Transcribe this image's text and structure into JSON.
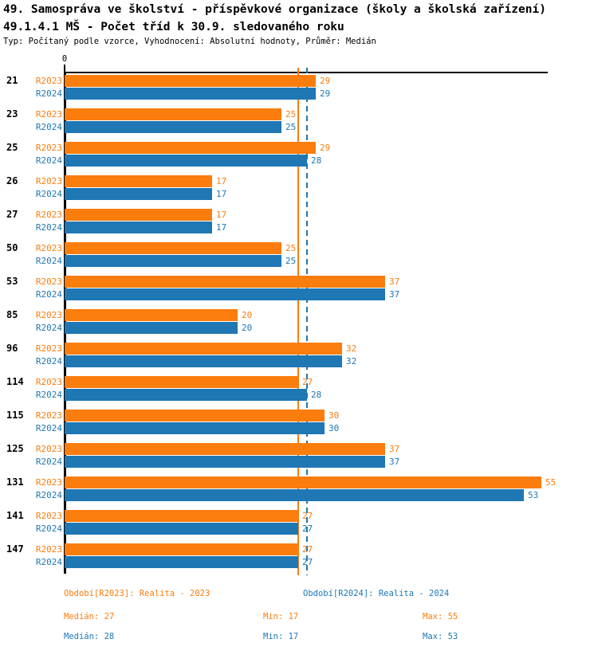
{
  "chart_data": {
    "type": "bar",
    "orientation": "horizontal",
    "title": "49. Samospráva ve školství - příspěvkové organizace (školy a školská zařízení)",
    "subtitle": "49.1.4.1 MŠ - Počet tříd k 30.9. sledovaného roku",
    "meta": "Typ: Počítaný podle vzorce, Vyhodnocení: Absolutní hodnoty, Průměr: Medián",
    "categories": [
      "21",
      "23",
      "25",
      "26",
      "27",
      "50",
      "53",
      "85",
      "96",
      "114",
      "115",
      "125",
      "131",
      "141",
      "147"
    ],
    "series": [
      {
        "name": "R2023",
        "legend": "Období[R2023]: Realita - 2023",
        "color": "#fb7d0e",
        "values": [
          29,
          25,
          29,
          17,
          17,
          25,
          37,
          20,
          32,
          27,
          30,
          37,
          55,
          27,
          27
        ],
        "median": 27,
        "min": 17,
        "max": 55,
        "median_line_style": "solid"
      },
      {
        "name": "R2024",
        "legend": "Období[R2024]: Realita - 2024",
        "color": "#1f77b4",
        "values": [
          29,
          25,
          28,
          17,
          17,
          25,
          37,
          20,
          32,
          28,
          30,
          37,
          53,
          27,
          27
        ],
        "median": 28,
        "min": 17,
        "max": 53,
        "median_line_style": "dashed"
      }
    ],
    "x_axis": {
      "origin_label": "0",
      "position": "top",
      "max": 55.7
    },
    "grid": false,
    "legend_position": "bottom"
  },
  "footer": {
    "r2023_stats": [
      "Medián: 27",
      "Min: 17",
      "Max: 55"
    ],
    "r2024_stats": [
      "Medián: 28",
      "Min: 17",
      "Max: 53"
    ]
  }
}
